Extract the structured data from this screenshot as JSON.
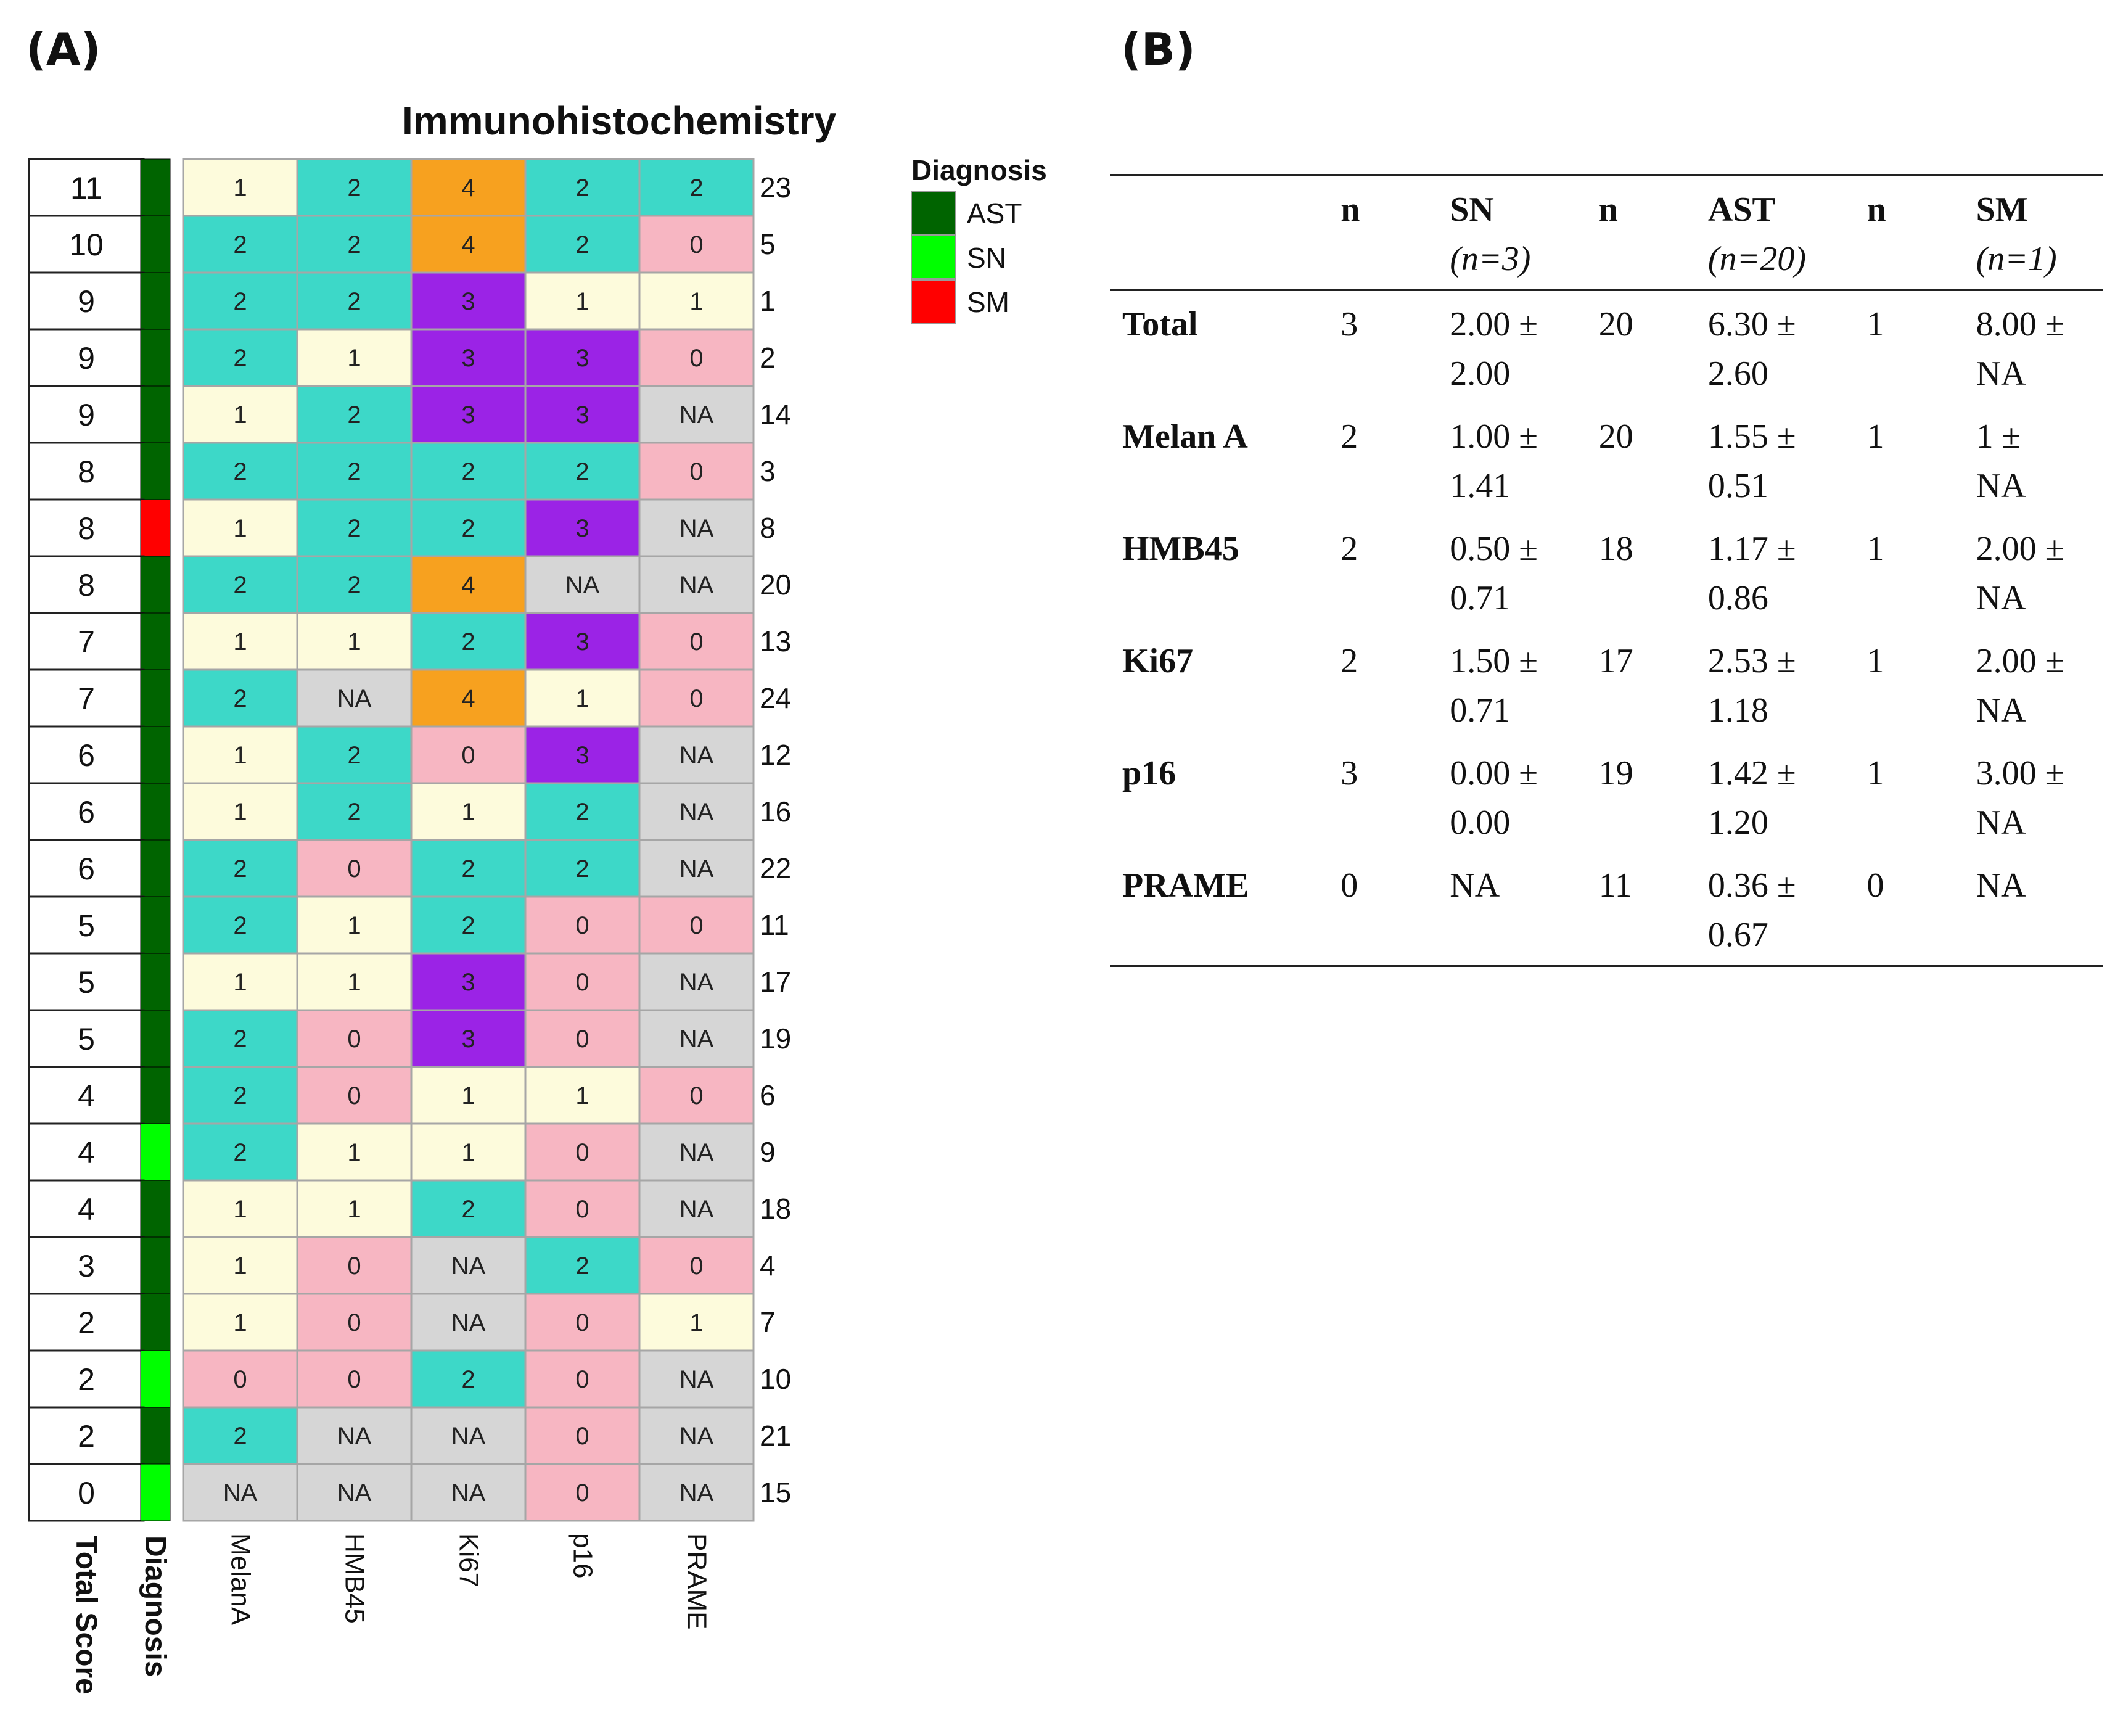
{
  "panel_a_label": "(A)",
  "panel_b_label": "(B)",
  "chart_data": [
    {
      "type": "heatmap",
      "title": "Immunohistochemistry",
      "row_axis_label": "Total Score",
      "diagnosis_label": "Diagnosis",
      "columns": [
        "MelanA",
        "HMB45",
        "Ki67",
        "p16",
        "PRAME"
      ],
      "legend": {
        "title": "Diagnosis",
        "entries": [
          {
            "label": "AST",
            "color": "#006400"
          },
          {
            "label": "SN",
            "color": "#00ff00"
          },
          {
            "label": "SM",
            "color": "#ff0000"
          }
        ],
        "placement": "right"
      },
      "value_colors": {
        "0": "#f7b6c2",
        "1": "#fdfbdc",
        "2": "#3dd8c8",
        "3": "#9b23e6",
        "4": "#f7a11f",
        "NA": "#d6d6d6"
      },
      "rows": [
        {
          "score": "11",
          "diagnosis": "AST",
          "id": "23",
          "values": [
            "1",
            "2",
            "4",
            "2",
            "2"
          ]
        },
        {
          "score": "10",
          "diagnosis": "AST",
          "id": "5",
          "values": [
            "2",
            "2",
            "4",
            "2",
            "0"
          ]
        },
        {
          "score": "9",
          "diagnosis": "AST",
          "id": "1",
          "values": [
            "2",
            "2",
            "3",
            "1",
            "1"
          ]
        },
        {
          "score": "9",
          "diagnosis": "AST",
          "id": "2",
          "values": [
            "2",
            "1",
            "3",
            "3",
            "0"
          ]
        },
        {
          "score": "9",
          "diagnosis": "AST",
          "id": "14",
          "values": [
            "1",
            "2",
            "3",
            "3",
            "NA"
          ]
        },
        {
          "score": "8",
          "diagnosis": "AST",
          "id": "3",
          "values": [
            "2",
            "2",
            "2",
            "2",
            "0"
          ]
        },
        {
          "score": "8",
          "diagnosis": "SM",
          "id": "8",
          "values": [
            "1",
            "2",
            "2",
            "3",
            "NA"
          ]
        },
        {
          "score": "8",
          "diagnosis": "AST",
          "id": "20",
          "values": [
            "2",
            "2",
            "4",
            "NA",
            "NA"
          ]
        },
        {
          "score": "7",
          "diagnosis": "AST",
          "id": "13",
          "values": [
            "1",
            "1",
            "2",
            "3",
            "0"
          ]
        },
        {
          "score": "7",
          "diagnosis": "AST",
          "id": "24",
          "values": [
            "2",
            "NA",
            "4",
            "1",
            "0"
          ]
        },
        {
          "score": "6",
          "diagnosis": "AST",
          "id": "12",
          "values": [
            "1",
            "2",
            "0",
            "3",
            "NA"
          ]
        },
        {
          "score": "6",
          "diagnosis": "AST",
          "id": "16",
          "values": [
            "1",
            "2",
            "1",
            "2",
            "NA"
          ]
        },
        {
          "score": "6",
          "diagnosis": "AST",
          "id": "22",
          "values": [
            "2",
            "0",
            "2",
            "2",
            "NA"
          ]
        },
        {
          "score": "5",
          "diagnosis": "AST",
          "id": "11",
          "values": [
            "2",
            "1",
            "2",
            "0",
            "0"
          ]
        },
        {
          "score": "5",
          "diagnosis": "AST",
          "id": "17",
          "values": [
            "1",
            "1",
            "3",
            "0",
            "NA"
          ]
        },
        {
          "score": "5",
          "diagnosis": "AST",
          "id": "19",
          "values": [
            "2",
            "0",
            "3",
            "0",
            "NA"
          ]
        },
        {
          "score": "4",
          "diagnosis": "AST",
          "id": "6",
          "values": [
            "2",
            "0",
            "1",
            "1",
            "0"
          ]
        },
        {
          "score": "4",
          "diagnosis": "SN",
          "id": "9",
          "values": [
            "2",
            "1",
            "1",
            "0",
            "NA"
          ]
        },
        {
          "score": "4",
          "diagnosis": "AST",
          "id": "18",
          "values": [
            "1",
            "1",
            "2",
            "0",
            "NA"
          ]
        },
        {
          "score": "3",
          "diagnosis": "AST",
          "id": "4",
          "values": [
            "1",
            "0",
            "NA",
            "2",
            "0"
          ]
        },
        {
          "score": "2",
          "diagnosis": "AST",
          "id": "7",
          "values": [
            "1",
            "0",
            "NA",
            "0",
            "1"
          ]
        },
        {
          "score": "2",
          "diagnosis": "SN",
          "id": "10",
          "values": [
            "0",
            "0",
            "2",
            "0",
            "NA"
          ]
        },
        {
          "score": "2",
          "diagnosis": "AST",
          "id": "21",
          "values": [
            "2",
            "NA",
            "NA",
            "0",
            "NA"
          ]
        },
        {
          "score": "0",
          "diagnosis": "SN",
          "id": "15",
          "values": [
            "NA",
            "NA",
            "NA",
            "0",
            "NA"
          ]
        }
      ]
    },
    {
      "type": "table",
      "headers": [
        {
          "label": "",
          "sub": ""
        },
        {
          "label": "n",
          "sub": ""
        },
        {
          "label": "SN",
          "sub": "(n=3)"
        },
        {
          "label": "n",
          "sub": ""
        },
        {
          "label": "AST",
          "sub": "(n=20)"
        },
        {
          "label": "n",
          "sub": ""
        },
        {
          "label": "SM",
          "sub": "(n=1)"
        }
      ],
      "rows": [
        {
          "label": "Total",
          "n_sn": "3",
          "sn_line1": "2.00 ±",
          "sn_line2": "2.00",
          "n_ast": "20",
          "ast_line1": "6.30 ±",
          "ast_line2": "2.60",
          "n_sm": "1",
          "sm_line1": "8.00 ±",
          "sm_line2": "NA"
        },
        {
          "label": "Melan A",
          "n_sn": "2",
          "sn_line1": "1.00 ±",
          "sn_line2": "1.41",
          "n_ast": "20",
          "ast_line1": "1.55 ±",
          "ast_line2": "0.51",
          "n_sm": "1",
          "sm_line1": "1 ±",
          "sm_line2": "NA"
        },
        {
          "label": "HMB45",
          "n_sn": "2",
          "sn_line1": "0.50 ±",
          "sn_line2": "0.71",
          "n_ast": "18",
          "ast_line1": "1.17 ±",
          "ast_line2": "0.86",
          "n_sm": "1",
          "sm_line1": "2.00 ±",
          "sm_line2": "NA"
        },
        {
          "label": "Ki67",
          "n_sn": "2",
          "sn_line1": "1.50 ±",
          "sn_line2": "0.71",
          "n_ast": "17",
          "ast_line1": "2.53 ±",
          "ast_line2": "1.18",
          "n_sm": "1",
          "sm_line1": "2.00 ±",
          "sm_line2": "NA"
        },
        {
          "label": "p16",
          "n_sn": "3",
          "sn_line1": "0.00 ±",
          "sn_line2": "0.00",
          "n_ast": "19",
          "ast_line1": "1.42 ±",
          "ast_line2": "1.20",
          "n_sm": "1",
          "sm_line1": "3.00 ±",
          "sm_line2": "NA"
        },
        {
          "label": "PRAME",
          "n_sn": "0",
          "sn_line1": "NA",
          "sn_line2": "",
          "n_ast": "11",
          "ast_line1": "0.36 ±",
          "ast_line2": "0.67",
          "n_sm": "0",
          "sm_line1": "NA",
          "sm_line2": ""
        }
      ]
    }
  ]
}
